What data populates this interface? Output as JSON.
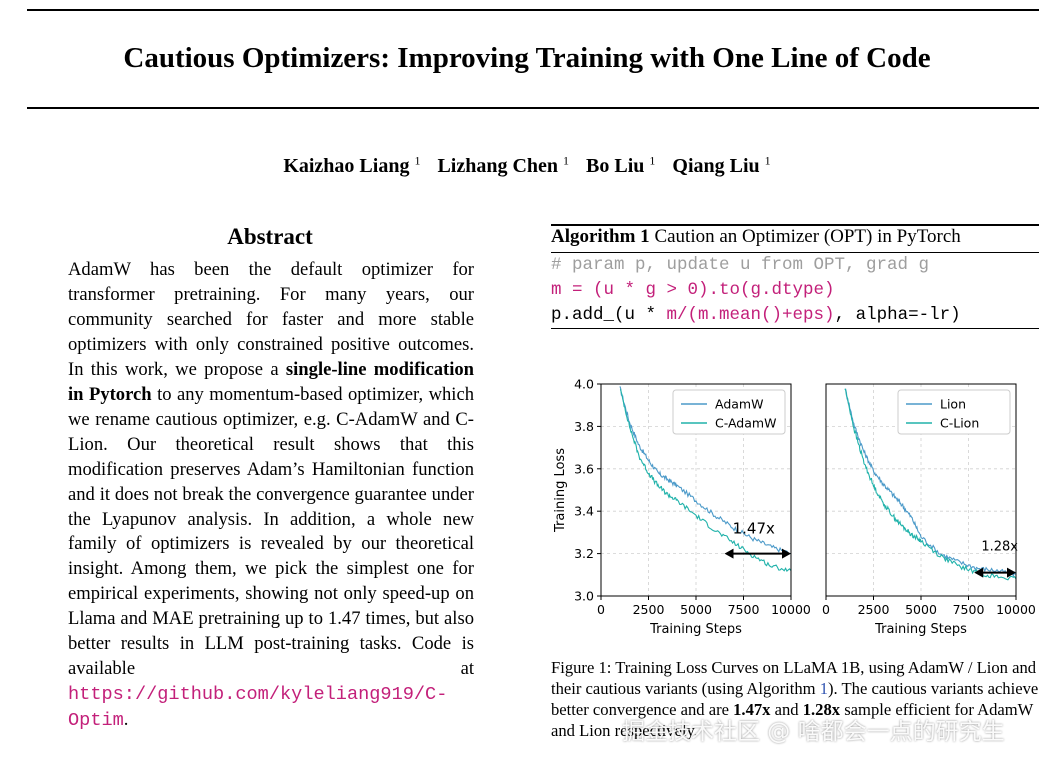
{
  "paper": {
    "title": "Cautious Optimizers: Improving Training with One Line of Code",
    "authors": [
      {
        "name": "Kaizhao Liang",
        "aff": "1"
      },
      {
        "name": "Lizhang Chen",
        "aff": "1"
      },
      {
        "name": "Bo Liu",
        "aff": "1"
      },
      {
        "name": "Qiang Liu",
        "aff": "1"
      }
    ]
  },
  "abstract": {
    "heading": "Abstract",
    "p1": "AdamW has been the default optimizer for transformer pretraining. For many years, our community searched for faster and more stable optimizers with only constrained positive outcomes. In this work, we propose a ",
    "bold1": "single-line modification in Pytorch",
    "p2": " to any momentum-based optimizer, which we rename cautious optimizer, e.g. C-AdamW and C-Lion. Our theoretical result shows that this modification preserves Adam’s Hamiltonian function and it does not break the convergence guarantee under the Lyapunov analysis. In addition, a whole new family of optimizers is revealed by our theoretical insight. Among them, we pick the simplest one for empirical experiments, showing not only speed-up on Llama and MAE pretraining up to ",
    "speedup": "1.47",
    "p3": " times, but also better results in LLM post-training tasks. Code is available at ",
    "link": "https://github.com/kyleliang919/C-Optim",
    "end": "."
  },
  "algorithm": {
    "label": "Algorithm 1",
    "caption": "Caution an Optimizer (OPT) in PyTorch",
    "line1": "# param p, update u from OPT, grad g",
    "line2": "m = (u * g > 0).to(g.dtype)",
    "line3_a": "p.add_(u * ",
    "line3_b": "m/(m.mean()+eps)",
    "line3_c": ", alpha=-lr)"
  },
  "figure": {
    "caption_a": "Figure 1: Training Loss Curves on LLaMA 1B, using AdamW / Lion and their cautious variants (using Algorithm ",
    "caption_ref": "1",
    "caption_b": "). The cautious variants achieve better convergence and are ",
    "speedup_adamw": "1.47x",
    "caption_c": " and ",
    "speedup_lion": "1.28x",
    "caption_d": " sample efficient for AdamW and Lion respectively."
  },
  "chart_data": [
    {
      "type": "line",
      "title": "",
      "xlabel": "Training Steps",
      "ylabel": "Training Loss",
      "xlim": [
        0,
        10000
      ],
      "ylim": [
        3.0,
        4.0
      ],
      "xticks": [
        "0",
        "2500",
        "5000",
        "7500",
        "10000"
      ],
      "yticks": [
        "3.0",
        "3.2",
        "3.4",
        "3.6",
        "3.8",
        "4.0"
      ],
      "grid": true,
      "legend": "top-right",
      "series": [
        {
          "name": "AdamW",
          "color": "#4c9ac9",
          "x": [
            1000,
            1500,
            2000,
            2500,
            3000,
            3500,
            4000,
            5000,
            6000,
            7000,
            8000,
            9000,
            10000
          ],
          "y": [
            3.98,
            3.82,
            3.71,
            3.64,
            3.58,
            3.55,
            3.52,
            3.45,
            3.38,
            3.32,
            3.27,
            3.23,
            3.2
          ]
        },
        {
          "name": "C-AdamW",
          "color": "#20b2aa",
          "x": [
            1000,
            1500,
            2000,
            2500,
            3000,
            3500,
            4000,
            5000,
            6000,
            7000,
            8000,
            9000,
            10000
          ],
          "y": [
            3.98,
            3.8,
            3.66,
            3.58,
            3.52,
            3.48,
            3.45,
            3.38,
            3.31,
            3.25,
            3.19,
            3.14,
            3.12
          ]
        }
      ],
      "annotation": {
        "text": "1.47x",
        "from": 6500,
        "to": 10000,
        "y": 3.2
      }
    },
    {
      "type": "line",
      "title": "",
      "xlabel": "Training Steps",
      "ylabel": "",
      "xlim": [
        0,
        10000
      ],
      "ylim": [
        3.0,
        4.0
      ],
      "xticks": [
        "0",
        "2500",
        "5000",
        "7500",
        "10000"
      ],
      "yticks": [],
      "grid": true,
      "legend": "top-right",
      "series": [
        {
          "name": "Lion",
          "color": "#4c9ac9",
          "x": [
            1000,
            1500,
            2000,
            2500,
            3000,
            3500,
            4000,
            4500,
            5000,
            6000,
            7000,
            8000,
            9000,
            10000
          ],
          "y": [
            3.98,
            3.8,
            3.68,
            3.59,
            3.53,
            3.48,
            3.43,
            3.37,
            3.28,
            3.2,
            3.16,
            3.13,
            3.12,
            3.1
          ]
        },
        {
          "name": "C-Lion",
          "color": "#20b2aa",
          "x": [
            1000,
            1500,
            2000,
            2500,
            3000,
            3500,
            4000,
            4500,
            5000,
            6000,
            7000,
            8000,
            9000,
            10000
          ],
          "y": [
            3.98,
            3.78,
            3.63,
            3.52,
            3.44,
            3.38,
            3.33,
            3.29,
            3.26,
            3.19,
            3.14,
            3.11,
            3.09,
            3.08
          ]
        }
      ],
      "annotation": {
        "text": "1.28x",
        "from": 7800,
        "to": 10000,
        "y": 3.11
      }
    }
  ],
  "watermark": "掘金技术社区 @ 啥都会一点的研究生"
}
